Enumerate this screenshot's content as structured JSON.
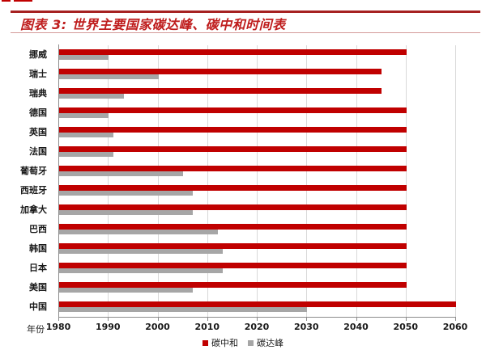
{
  "page_title": "图表 3: 世界主要国家碳达峰、碳中和时间表",
  "colors": {
    "accent_red": "#bf1d1d",
    "rule_thick": "#a62121",
    "rule_thin": "#d49a98",
    "bar_neutrality": "#c00000",
    "bar_peak": "#a6a6a6",
    "grid": "#d9d9d9",
    "axis": "#8c8c8c"
  },
  "chart_data": {
    "type": "bar",
    "orientation": "horizontal",
    "title": "世界主要国家碳达峰、碳中和时间表",
    "xlabel": "年份",
    "ylabel": "",
    "xlim": [
      1980,
      2060
    ],
    "x_ticks": [
      1980,
      1990,
      2000,
      2010,
      2020,
      2030,
      2040,
      2050,
      2060
    ],
    "grid": "vertical",
    "legend_position": "bottom",
    "categories": [
      "挪威",
      "瑞士",
      "瑞典",
      "德国",
      "英国",
      "法国",
      "葡萄牙",
      "西班牙",
      "加拿大",
      "巴西",
      "韩国",
      "日本",
      "美国",
      "中国"
    ],
    "series": [
      {
        "name": "碳中和",
        "color": "#c00000",
        "values": [
          2050,
          2045,
          2045,
          2050,
          2050,
          2050,
          2050,
          2050,
          2050,
          2050,
          2050,
          2050,
          2050,
          2060
        ]
      },
      {
        "name": "碳达峰",
        "color": "#a6a6a6",
        "values": [
          1990,
          2000,
          1993,
          1990,
          1991,
          1991,
          2005,
          2007,
          2007,
          2012,
          2013,
          2013,
          2007,
          2030
        ]
      }
    ]
  },
  "legend": {
    "items": [
      {
        "label": "碳中和",
        "color": "#c00000"
      },
      {
        "label": "碳达峰",
        "color": "#a6a6a6"
      }
    ]
  }
}
